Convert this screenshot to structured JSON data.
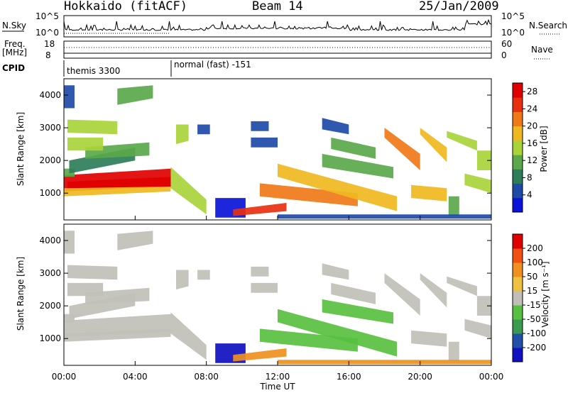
{
  "header": {
    "station": "Hokkaido (fitACF)",
    "beam": "Beam 14",
    "date": "25/Jan/2009"
  },
  "top_panel": {
    "left_label_sky": "N.Sky",
    "left_ticks_sky": [
      "10^5",
      "10^0"
    ],
    "right_ticks_search": [
      "10^5",
      "10^0"
    ],
    "right_label_search": "N.Search",
    "left_label_freq_1": "Freq.",
    "left_label_freq_2": "[MHz]",
    "left_ticks_freq": [
      "18",
      "8"
    ],
    "right_ticks_nave": [
      "60",
      "0"
    ],
    "right_label_nave": "Nave",
    "cpid_label": "CPID",
    "cpid_segments": [
      {
        "label": "themis 3300",
        "start_hour": 0
      },
      {
        "label": "normal (fast) -151",
        "start_hour": 6
      }
    ]
  },
  "colors": {
    "power": [
      "#0a14d8",
      "#1e4aa8",
      "#2e7d5a",
      "#5aa84a",
      "#a8d43a",
      "#f0b820",
      "#f07818",
      "#e83010",
      "#e00000"
    ],
    "velocity": [
      "#e00000",
      "#f05010",
      "#f09020",
      "#f0c040",
      "#c0c0b8",
      "#58c040",
      "#3a9a50",
      "#2050a8",
      "#1010c0"
    ]
  },
  "chart_data": [
    {
      "type": "heatmap",
      "name": "power",
      "ylabel": "Slant Range [km]",
      "x_range_hours": [
        0,
        24
      ],
      "ylim": [
        180,
        4500
      ],
      "yticks": [
        "1000",
        "2000",
        "3000",
        "4000"
      ],
      "colorbar": {
        "label": "Power [dB]",
        "ticks": [
          "4",
          "8",
          "12",
          "16",
          "20",
          "24",
          "28"
        ],
        "range": [
          0,
          30
        ]
      }
    },
    {
      "type": "heatmap",
      "name": "velocity",
      "ylabel": "Slant Range [km]",
      "xlabel": "Time UT",
      "x_range_hours": [
        0,
        24
      ],
      "xticks": [
        "00:00",
        "04:00",
        "08:00",
        "12:00",
        "16:00",
        "20:00",
        "00:00"
      ],
      "ylim": [
        180,
        4500
      ],
      "yticks": [
        "1000",
        "2000",
        "3000",
        "4000"
      ],
      "colorbar": {
        "label": "Velocity [m s⁻¹]",
        "ticks": [
          "200",
          "100",
          "50",
          "15",
          "-15",
          "-50",
          "-100",
          "-200"
        ]
      }
    }
  ]
}
